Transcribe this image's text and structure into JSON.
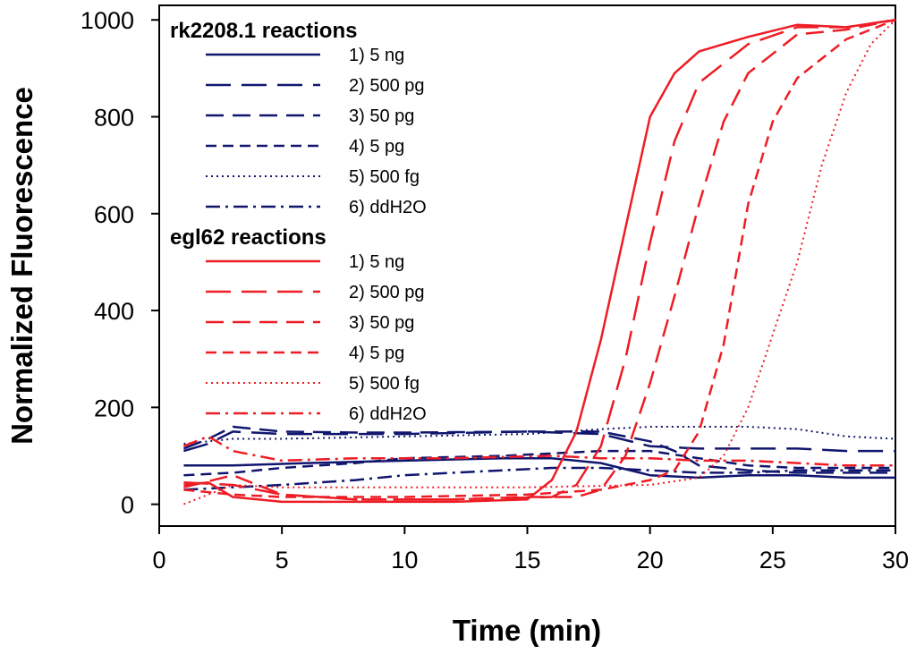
{
  "chart_data": {
    "type": "line",
    "title": "",
    "xlabel": "Time (min)",
    "ylabel": "Normalized Fluorescence",
    "xlim": [
      0,
      30
    ],
    "ylim": [
      -45,
      1030
    ],
    "xticks": [
      0,
      5,
      10,
      15,
      20,
      25,
      30
    ],
    "yticks": [
      0,
      200,
      400,
      600,
      800,
      1000
    ],
    "grid": false,
    "legend_placement": "top-left",
    "colors": {
      "blue": "#10166e",
      "red": "#ee1c24"
    },
    "groups": [
      {
        "key": "rk",
        "title": "rk2208.1 reactions",
        "color": "#10166e"
      },
      {
        "key": "egl",
        "title": "egl62 reactions",
        "color": "#ee1c24"
      }
    ],
    "series": [
      {
        "name": "1) 5 ng",
        "group": "rk",
        "style": "solid",
        "x": [
          1,
          3,
          6,
          10,
          14,
          16,
          18,
          20,
          22,
          24,
          26,
          28,
          30
        ],
        "y": [
          80,
          80,
          85,
          90,
          95,
          95,
          85,
          60,
          55,
          60,
          60,
          55,
          55
        ]
      },
      {
        "name": "2) 500 pg",
        "group": "rk",
        "style": "longdash",
        "x": [
          1,
          2,
          3,
          5,
          10,
          15,
          18,
          20,
          22,
          24,
          26,
          28,
          30
        ],
        "y": [
          110,
          125,
          150,
          145,
          145,
          150,
          145,
          120,
          115,
          115,
          115,
          110,
          110
        ]
      },
      {
        "name": "3) 50 pg",
        "group": "rk",
        "style": "medium-dash",
        "x": [
          1,
          2,
          3,
          5,
          8,
          10,
          15,
          18,
          20,
          21,
          22,
          24,
          26,
          28,
          30
        ],
        "y": [
          115,
          135,
          160,
          150,
          148,
          148,
          150,
          150,
          130,
          110,
          80,
          70,
          65,
          65,
          65
        ]
      },
      {
        "name": "4) 5 pg",
        "group": "rk",
        "style": "shortdash",
        "x": [
          1,
          3,
          5,
          8,
          10,
          14,
          16,
          18,
          20,
          22,
          24,
          26,
          28,
          30
        ],
        "y": [
          60,
          65,
          75,
          85,
          95,
          100,
          105,
          110,
          110,
          95,
          80,
          75,
          75,
          75
        ]
      },
      {
        "name": "5) 500 fg",
        "group": "rk",
        "style": "dotted",
        "x": [
          1,
          2,
          3,
          5,
          10,
          15,
          18,
          20,
          22,
          24,
          26,
          28,
          30
        ],
        "y": [
          125,
          130,
          135,
          135,
          140,
          145,
          155,
          160,
          160,
          160,
          155,
          140,
          135
        ]
      },
      {
        "name": "6) ddH2O",
        "group": "rk",
        "style": "dashdot",
        "x": [
          1,
          3,
          5,
          8,
          10,
          12,
          14,
          16,
          18,
          20,
          22,
          24,
          26,
          28,
          30
        ],
        "y": [
          30,
          35,
          40,
          50,
          60,
          65,
          70,
          75,
          75,
          70,
          65,
          65,
          70,
          70,
          70
        ]
      },
      {
        "name": "1) 5 ng",
        "group": "egl",
        "style": "solid",
        "x": [
          1,
          2,
          3,
          5,
          8,
          12,
          15,
          16,
          17,
          18,
          19,
          20,
          21,
          22,
          24,
          26,
          28,
          30
        ],
        "y": [
          40,
          45,
          15,
          5,
          5,
          5,
          10,
          50,
          150,
          340,
          570,
          800,
          890,
          935,
          965,
          990,
          985,
          1000
        ]
      },
      {
        "name": "2) 500 pg",
        "group": "egl",
        "style": "longdash",
        "x": [
          1,
          3,
          5,
          8,
          12,
          16,
          17,
          18,
          19,
          20,
          21,
          22,
          24,
          26,
          28,
          30
        ],
        "y": [
          45,
          40,
          20,
          10,
          10,
          15,
          40,
          120,
          300,
          540,
          750,
          870,
          950,
          985,
          985,
          1000
        ]
      },
      {
        "name": "3) 50 pg",
        "group": "egl",
        "style": "medium-dash",
        "x": [
          1,
          3,
          5,
          8,
          12,
          15,
          17,
          18,
          19,
          20,
          21,
          22,
          23,
          24,
          26,
          28,
          30
        ],
        "y": [
          35,
          60,
          20,
          10,
          10,
          15,
          15,
          30,
          100,
          250,
          430,
          620,
          790,
          890,
          970,
          980,
          1000
        ]
      },
      {
        "name": "4) 5 pg",
        "group": "egl",
        "style": "shortdash",
        "x": [
          1,
          3,
          5,
          10,
          15,
          18,
          20,
          21,
          22,
          23,
          24,
          25,
          26,
          28,
          30
        ],
        "y": [
          30,
          20,
          15,
          15,
          20,
          30,
          50,
          70,
          150,
          330,
          620,
          790,
          880,
          960,
          1000
        ]
      },
      {
        "name": "5) 500 fg",
        "group": "egl",
        "style": "dotted",
        "x": [
          1,
          3,
          5,
          10,
          15,
          20,
          22,
          23,
          24,
          25,
          26,
          27,
          28,
          29,
          30
        ],
        "y": [
          0,
          40,
          35,
          35,
          35,
          40,
          55,
          100,
          200,
          350,
          500,
          700,
          850,
          950,
          1000
        ]
      },
      {
        "name": "6) ddH2O",
        "group": "egl",
        "style": "dashdot",
        "x": [
          1,
          2,
          3,
          5,
          8,
          12,
          16,
          18,
          20,
          22,
          24,
          26,
          28,
          30
        ],
        "y": [
          120,
          140,
          110,
          90,
          95,
          95,
          100,
          95,
          95,
          90,
          90,
          85,
          80,
          80
        ]
      }
    ]
  }
}
